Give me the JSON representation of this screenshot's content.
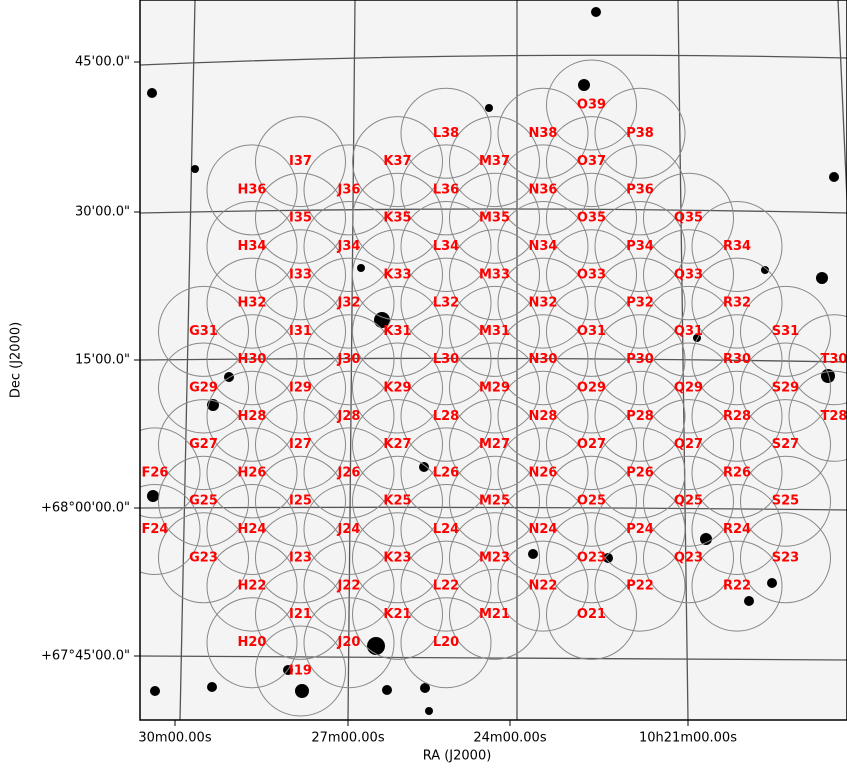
{
  "axes": {
    "x_label": "RA (J2000)",
    "y_label": "Dec (J2000)",
    "x_ticks": [
      "30m00.00s",
      "27m00.00s",
      "24m00.00s",
      "10h21m00.00s"
    ],
    "y_ticks": [
      "45'00.0\"",
      "30'00.0\"",
      "15'00.0\"",
      "+68°00'00.0\"",
      "+67°45'00.0\""
    ]
  },
  "fields": [
    "O39",
    "L38",
    "N38",
    "P38",
    "I37",
    "K37",
    "M37",
    "O37",
    "H36",
    "J36",
    "L36",
    "N36",
    "P36",
    "I35",
    "K35",
    "M35",
    "O35",
    "Q35",
    "H34",
    "J34",
    "L34",
    "N34",
    "P34",
    "R34",
    "I33",
    "K33",
    "M33",
    "O33",
    "Q33",
    "H32",
    "J32",
    "L32",
    "N32",
    "P32",
    "R32",
    "G31",
    "I31",
    "K31",
    "M31",
    "O31",
    "Q31",
    "S31",
    "H30",
    "J30",
    "L30",
    "N30",
    "P30",
    "R30",
    "T30",
    "G29",
    "I29",
    "K29",
    "M29",
    "O29",
    "Q29",
    "S29",
    "H28",
    "J28",
    "L28",
    "N28",
    "P28",
    "R28",
    "T28",
    "G27",
    "I27",
    "K27",
    "M27",
    "O27",
    "Q27",
    "S27",
    "F26",
    "H26",
    "J26",
    "L26",
    "N26",
    "P26",
    "R26",
    "G25",
    "I25",
    "K25",
    "M25",
    "O25",
    "Q25",
    "S25",
    "F24",
    "H24",
    "J24",
    "L24",
    "N24",
    "P24",
    "R24",
    "G23",
    "I23",
    "K23",
    "M23",
    "O23",
    "Q23",
    "S23",
    "H22",
    "J22",
    "L22",
    "N22",
    "P22",
    "R22",
    "I21",
    "K21",
    "M21",
    "O21",
    "H20",
    "J20",
    "L20",
    "I19"
  ]
}
